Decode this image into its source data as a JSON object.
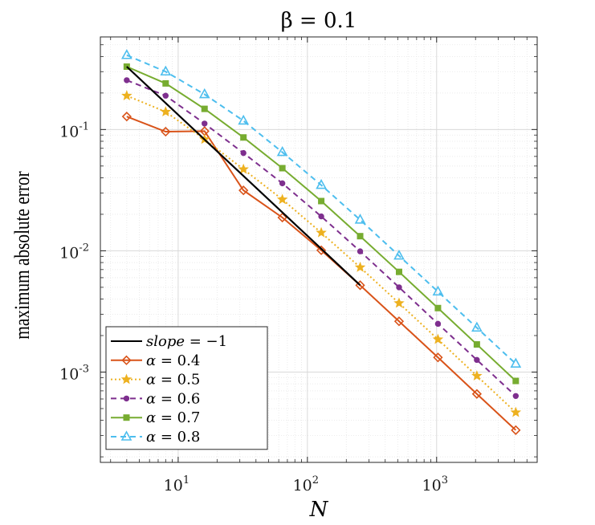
{
  "chart_data": {
    "type": "line",
    "title": "β = 0.1",
    "xlabel": "N",
    "ylabel": "maximum absolute error",
    "xscale": "log",
    "yscale": "log",
    "xlim": [
      2.5,
      6000
    ],
    "ylim": [
      0.00018,
      0.58
    ],
    "xticks": [
      {
        "value": 10,
        "base": "10",
        "exp": "1"
      },
      {
        "value": 100,
        "base": "10",
        "exp": "2"
      },
      {
        "value": 1000,
        "base": "10",
        "exp": "3"
      }
    ],
    "yticks": [
      {
        "value": 0.001,
        "base": "10",
        "exp": "-3"
      },
      {
        "value": 0.01,
        "base": "10",
        "exp": "-2"
      },
      {
        "value": 0.1,
        "base": "10",
        "exp": "-1"
      }
    ],
    "grid": true,
    "legend_position": "bottom-left",
    "slope_line": {
      "name": "slope = −1",
      "label_var": "slope",
      "label_rest": " = −1",
      "color": "#000000",
      "x": [
        4,
        256
      ],
      "y": [
        0.33,
        0.0052
      ]
    },
    "x": [
      4,
      8,
      16,
      32,
      64,
      128,
      256,
      512,
      1024,
      2048,
      4096
    ],
    "series": [
      {
        "name": "α = 0.4",
        "label_var": "α",
        "label_rest": " = 0.4",
        "color": "#D95319",
        "dash": "solid",
        "marker": "diamond",
        "values": [
          0.128,
          0.096,
          0.097,
          0.0315,
          0.0188,
          0.0101,
          0.0052,
          0.00262,
          0.00132,
          0.00066,
          0.000332
        ]
      },
      {
        "name": "α = 0.5",
        "label_var": "α",
        "label_rest": " = 0.5",
        "color": "#EDB120",
        "dash": "dotted",
        "marker": "star",
        "values": [
          0.19,
          0.14,
          0.083,
          0.047,
          0.0265,
          0.0141,
          0.0073,
          0.0037,
          0.00186,
          0.00093,
          0.000465
        ]
      },
      {
        "name": "α = 0.6",
        "label_var": "α",
        "label_rest": " = 0.6",
        "color": "#7E2F8E",
        "dash": "dashed",
        "marker": "dot",
        "values": [
          0.255,
          0.19,
          0.112,
          0.064,
          0.036,
          0.0192,
          0.0099,
          0.005,
          0.0025,
          0.00126,
          0.000635
        ]
      },
      {
        "name": "α = 0.7",
        "label_var": "α",
        "label_rest": " = 0.7",
        "color": "#77AC30",
        "dash": "solid",
        "marker": "square",
        "values": [
          0.33,
          0.24,
          0.148,
          0.086,
          0.048,
          0.0257,
          0.0132,
          0.0067,
          0.00337,
          0.00169,
          0.000845
        ]
      },
      {
        "name": "α = 0.8",
        "label_var": "α",
        "label_rest": " = 0.8",
        "color": "#4DBEEE",
        "dash": "dashed",
        "marker": "triangle",
        "values": [
          0.41,
          0.3,
          0.195,
          0.118,
          0.065,
          0.0348,
          0.018,
          0.0091,
          0.0046,
          0.00232,
          0.00117
        ]
      }
    ]
  }
}
